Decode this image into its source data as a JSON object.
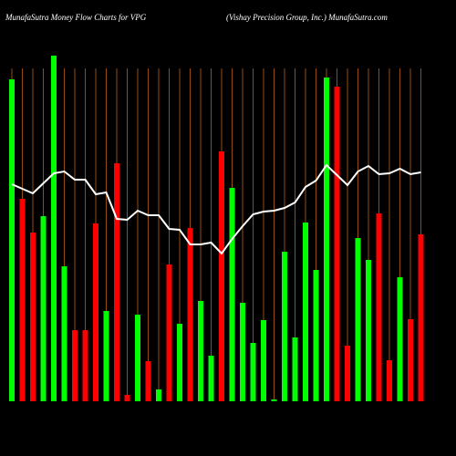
{
  "chart_data": {
    "type": "bar",
    "title": "MunafaSutra  Money Flow  Charts for VPG",
    "subtitle": "(Vishay Precision  Group,  Inc.) MunafaSutra.com",
    "ylim": [
      0,
      380
    ],
    "grid_color": "#b8601a",
    "line_color": "#ffffff",
    "values": [
      353,
      222,
      185,
      203,
      379,
      148,
      78,
      78,
      195,
      99,
      261,
      7,
      95,
      44,
      13,
      150,
      85,
      190,
      110,
      50,
      274,
      234,
      108,
      64,
      89,
      2,
      164,
      70,
      196,
      144,
      355,
      345,
      61,
      179,
      155,
      206,
      45,
      136,
      90,
      183
    ],
    "colors": [
      "#00ff00",
      "#ff0000",
      "#ff0000",
      "#00ff00",
      "#00ff00",
      "#00ff00",
      "#ff0000",
      "#ff0000",
      "#ff0000",
      "#00ff00",
      "#ff0000",
      "#ff0000",
      "#00ff00",
      "#ff0000",
      "#00ff00",
      "#ff0000",
      "#00ff00",
      "#ff0000",
      "#00ff00",
      "#00ff00",
      "#ff0000",
      "#00ff00",
      "#00ff00",
      "#00ff00",
      "#00ff00",
      "#00ff00",
      "#00ff00",
      "#00ff00",
      "#00ff00",
      "#00ff00",
      "#00ff00",
      "#ff0000",
      "#ff0000",
      "#00ff00",
      "#00ff00",
      "#ff0000",
      "#ff0000",
      "#00ff00",
      "#ff0000",
      "#ff0000"
    ],
    "line": [
      238,
      233,
      228,
      239,
      250,
      252,
      243,
      243,
      227,
      229,
      200,
      199,
      209,
      204,
      204,
      189,
      188,
      172,
      172,
      174,
      162,
      178,
      192,
      205,
      208,
      209,
      212,
      218,
      235,
      242,
      259,
      248,
      237,
      252,
      258,
      249,
      250,
      255,
      249,
      251
    ]
  }
}
